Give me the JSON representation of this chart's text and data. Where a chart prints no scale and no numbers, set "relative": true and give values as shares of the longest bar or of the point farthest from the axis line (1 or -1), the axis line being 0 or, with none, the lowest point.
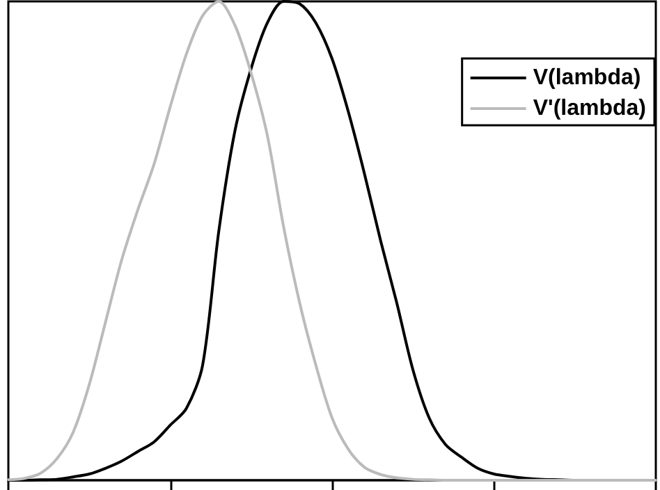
{
  "chart_data": {
    "type": "line",
    "relative": true,
    "tick_labels": false,
    "legend": "top right",
    "marker": "none",
    "line_style": "solid",
    "categories": [
      null,
      null,
      null,
      null,
      null,
      null,
      null,
      null,
      null,
      null,
      null,
      null,
      null,
      null,
      null,
      null,
      null,
      null,
      null,
      null,
      null,
      null,
      null,
      null,
      null,
      null,
      null,
      null,
      null,
      null,
      null,
      null,
      null,
      null,
      null,
      null,
      null,
      null,
      null,
      null,
      null
    ],
    "series": [
      {
        "name": "V(lambda)",
        "color": "#000000",
        "values": [
          0,
          0,
          0.001,
          0.002,
          0.007,
          0.013,
          0.025,
          0.04,
          0.06,
          0.08,
          0.115,
          0.15,
          0.24,
          0.52,
          0.73,
          0.86,
          0.955,
          1,
          0.995,
          0.955,
          0.88,
          0.77,
          0.64,
          0.5,
          0.37,
          0.23,
          0.13,
          0.075,
          0.048,
          0.025,
          0.013,
          0.008,
          0.004,
          0.002,
          0.001,
          0,
          0,
          0,
          0,
          0,
          0
        ]
      },
      {
        "name": "V'(lambda)",
        "color": "#bbbbbb",
        "values": [
          0.001,
          0.004,
          0.015,
          0.045,
          0.1,
          0.2,
          0.33,
          0.46,
          0.565,
          0.66,
          0.78,
          0.89,
          0.97,
          1,
          0.95,
          0.85,
          0.72,
          0.53,
          0.37,
          0.24,
          0.13,
          0.065,
          0.027,
          0.012,
          0.005,
          0.002,
          0.001,
          0,
          0,
          0,
          0,
          0,
          0,
          0,
          0,
          0,
          0,
          0,
          0,
          0,
          0
        ]
      }
    ]
  }
}
